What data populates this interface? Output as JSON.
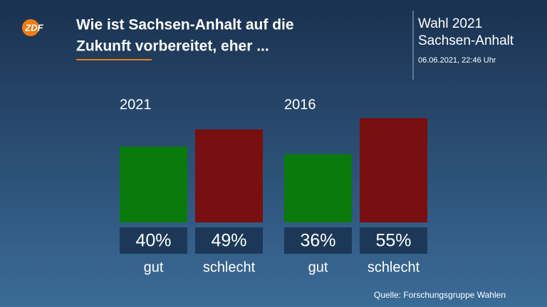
{
  "logo": "ZDF",
  "title": [
    "Wie ist Sachsen-Anhalt auf die",
    "Zukunft vorbereitet, eher ..."
  ],
  "info": {
    "election": "Wahl 2021",
    "state": "Sachsen-Anhalt",
    "timestamp": "06.06.2021, 22:46 Uhr"
  },
  "source": "Quelle: Forschungsgruppe Wahlen",
  "chart_data": [
    {
      "type": "bar",
      "title": "2021",
      "categories": [
        "gut",
        "schlecht"
      ],
      "values": [
        40,
        49
      ],
      "value_labels": [
        "40%",
        "49%"
      ],
      "colors": [
        "#0a7a0c",
        "#780f10"
      ]
    },
    {
      "type": "bar",
      "title": "2016",
      "categories": [
        "gut",
        "schlecht"
      ],
      "values": [
        36,
        55
      ],
      "value_labels": [
        "36%",
        "55%"
      ],
      "colors": [
        "#0a7a0c",
        "#780f10"
      ]
    }
  ]
}
